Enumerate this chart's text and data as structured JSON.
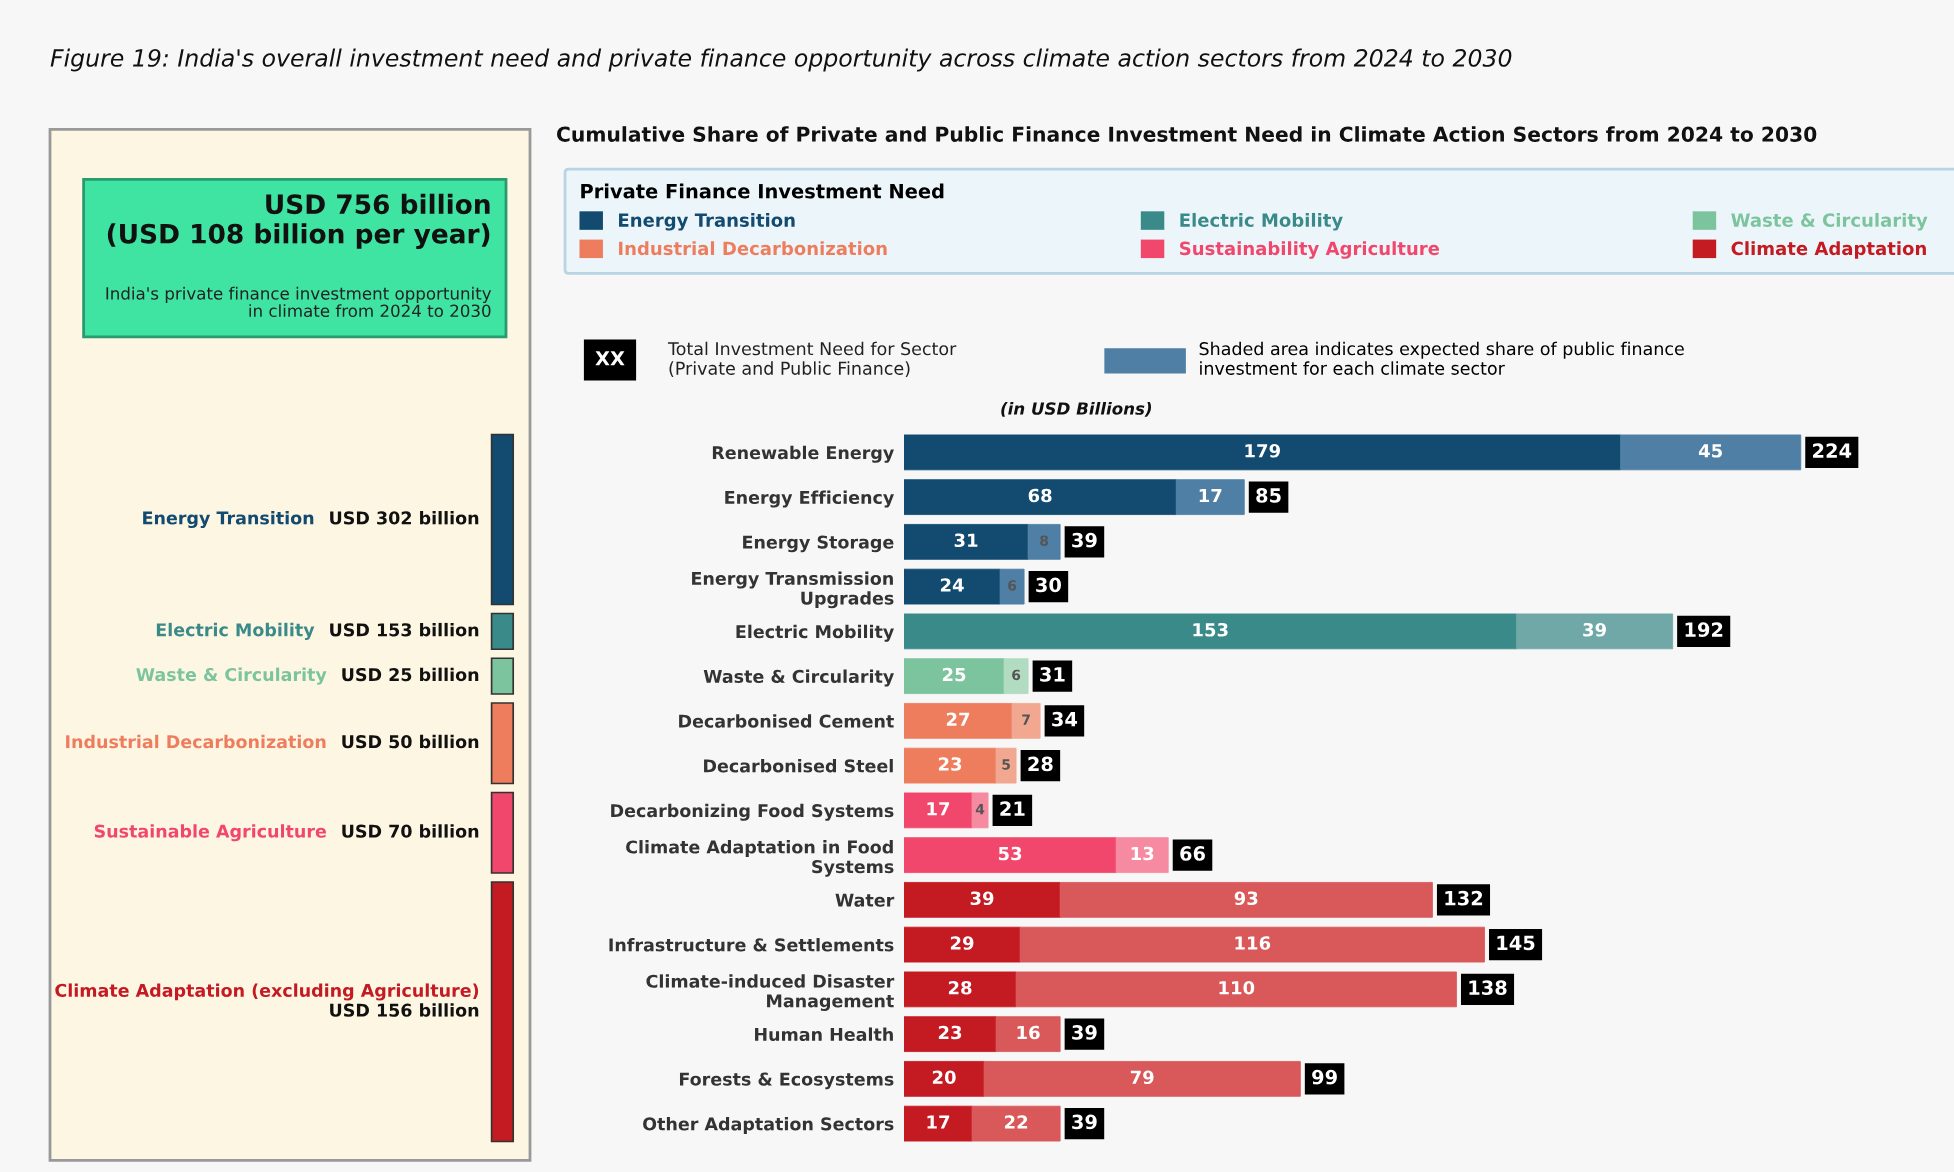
{
  "chart_data": [
    {
      "type": "other",
      "title": "USD 756 billion\n(USD 108 billion per year)",
      "subtitle": "India's private finance investment opportunity\nin climate from 2024 to 2030",
      "categories": [
        "Energy Transition",
        "Electric Mobility",
        "Waste & Circularity",
        "Industrial Decarbonization",
        "Sustainable Agriculture",
        "Climate Adaptation (excluding Agriculture)"
      ],
      "value_labels": [
        "USD 302 billion",
        "USD 153 billion",
        "USD 25 billion",
        "USD 50 billion",
        "USD 70 billion",
        "USD 156 billion"
      ],
      "annotations": [
        "Figure 19: India's overall investment need and private finance opportunity across climate action sectors from 2024 to 2030"
      ]
    },
    {
      "type": "bar",
      "orientation": "horizontal",
      "stacked": true,
      "title": "Cumulative Share of Private and Public Finance Investment Need in Climate Action Sectors from 2024 to 2030",
      "subtitle": "(in USD Billions)",
      "legend_title": "Private Finance Investment Need",
      "legend": "top",
      "tick_labels": "y",
      "data_labels": true,
      "categories": [
        "Renewable Energy",
        "Energy Efficiency",
        "Energy Storage",
        "Energy Transmission\nUpgrades",
        "Electric Mobility",
        "Waste & Circularity",
        "Decarbonised Cement",
        "Decarbonised Steel",
        "Decarbonizing Food Systems",
        "Climate Adaptation in Food\nSystems",
        "Water",
        "Infrastructure & Settlements",
        "Climate-induced Disaster\nManagement",
        "Human Health",
        "Forests & Ecosystems",
        "Other Adaptation Sectors"
      ],
      "series": [
        {
          "name": "Energy Transition",
          "color": "#124a70",
          "values": [
            179,
            68,
            31,
            24,
            null,
            null,
            null,
            null,
            null,
            null,
            null,
            null,
            null,
            null,
            null,
            null
          ]
        },
        {
          "name": "Electric Mobility",
          "color": "#3a8a8a",
          "values": [
            null,
            null,
            null,
            null,
            153,
            null,
            null,
            null,
            null,
            null,
            null,
            null,
            null,
            null,
            null,
            null
          ]
        },
        {
          "name": "Waste & Circularity",
          "color": "#7cc49e",
          "values": [
            null,
            null,
            null,
            null,
            null,
            25,
            null,
            null,
            null,
            null,
            null,
            null,
            null,
            null,
            null,
            null
          ]
        },
        {
          "name": "Industrial Decarbonization",
          "color": "#ee7d5e",
          "values": [
            null,
            null,
            null,
            null,
            null,
            null,
            27,
            23,
            null,
            null,
            null,
            null,
            null,
            null,
            null,
            null
          ]
        },
        {
          "name": "Sustainability Agriculture",
          "color": "#f2476c",
          "values": [
            null,
            null,
            null,
            null,
            null,
            null,
            null,
            null,
            17,
            53,
            null,
            null,
            null,
            null,
            null,
            null
          ]
        },
        {
          "name": "Climate Adaptation",
          "color": "#c41a22",
          "values": [
            null,
            null,
            null,
            null,
            null,
            null,
            null,
            null,
            null,
            null,
            39,
            29,
            28,
            23,
            20,
            17
          ]
        },
        {
          "name": "Shaded area indicates expected share of public finance\ninvestment for each climate sector",
          "colors": [
            "#4f7fa5",
            "#4f7fa5",
            "#4f7fa5",
            "#4f7fa5",
            "#6fa8a6",
            "#b2dcc2",
            "#f2a890",
            "#f2a890",
            "#f58aa0",
            "#f58aa0",
            "#d9585a",
            "#d9585a",
            "#d9585a",
            "#d9585a",
            "#d9585a",
            "#d9585a"
          ],
          "values": [
            45,
            17,
            8,
            6,
            39,
            6,
            7,
            5,
            4,
            13,
            93,
            116,
            110,
            16,
            79,
            22
          ]
        }
      ],
      "totals": [
        "224",
        "85",
        "39",
        "30",
        "192",
        "31",
        "34",
        "28",
        "21",
        "66",
        "132",
        "145",
        "138",
        "39",
        "99",
        "39"
      ],
      "annotations": [
        "XX",
        "Total Investment Need for Sector\n(Private and Public Finance)"
      ]
    }
  ]
}
